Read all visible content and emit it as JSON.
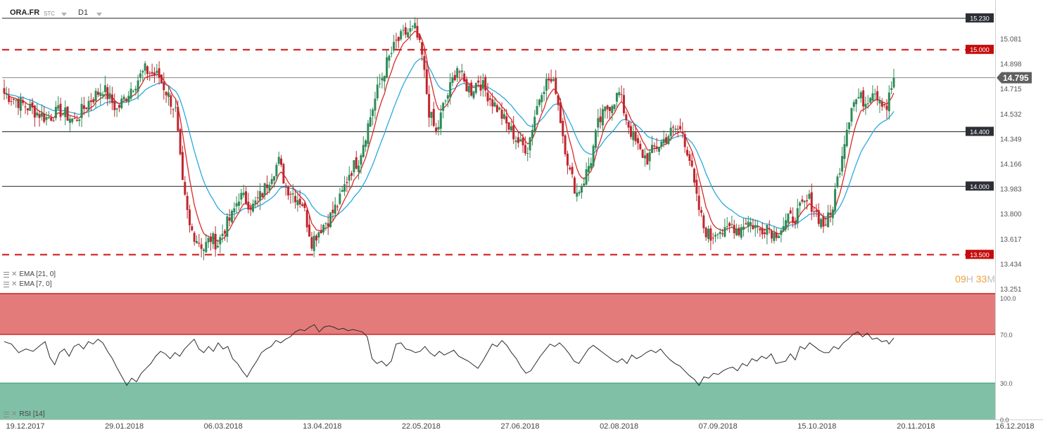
{
  "header": {
    "symbol": "ORA.FR",
    "source": "STC",
    "timeframe": "D1"
  },
  "indicators": [
    {
      "label": "EMA [21, 0]",
      "color": "#2aa9e0"
    },
    {
      "label": "EMA [7, 0]",
      "color": "#d92a2a"
    },
    {
      "label": "RSI [14]",
      "color": "#333333"
    }
  ],
  "timer": {
    "h": "09",
    "h_unit": "H",
    "m": "33",
    "m_unit": "M"
  },
  "chart_data": [
    {
      "type": "candlestick",
      "name": "price",
      "y_ticks": [
        "15.081",
        "14.898",
        "14.715",
        "14.532",
        "14.349",
        "14.166",
        "13.983",
        "13.800",
        "13.617",
        "13.434",
        "13.251"
      ],
      "ylim": [
        13.251,
        15.264
      ],
      "x_labels": [
        "19.12.2017",
        "29.01.2018",
        "06.03.2018",
        "13.04.2018",
        "22.05.2018",
        "27.06.2018",
        "02.08.2018",
        "07.09.2018",
        "15.10.2018",
        "20.11.2018",
        "16.12.2018"
      ],
      "last_price": {
        "label": "14.795",
        "value": 14.795
      },
      "levels": [
        {
          "label": "15.230",
          "value": 15.23,
          "style": "solid",
          "color": "#222222"
        },
        {
          "label": "15.000",
          "value": 15.0,
          "style": "dashed",
          "color": "#cc1111"
        },
        {
          "label": "14.400",
          "value": 14.4,
          "style": "solid",
          "color": "#222222"
        },
        {
          "label": "14.000",
          "value": 14.0,
          "style": "solid",
          "color": "#222222"
        },
        {
          "label": "13.500",
          "value": 13.5,
          "style": "dashed",
          "color": "#cc1111"
        }
      ],
      "close_path": [
        [
          0,
          14.68
        ],
        [
          6,
          14.62
        ],
        [
          12,
          14.56
        ],
        [
          18,
          14.5
        ],
        [
          24,
          14.55
        ],
        [
          30,
          14.48
        ],
        [
          36,
          14.62
        ],
        [
          42,
          14.72
        ],
        [
          48,
          14.56
        ],
        [
          54,
          14.72
        ],
        [
          60,
          14.85
        ],
        [
          66,
          14.8
        ],
        [
          70,
          14.66
        ],
        [
          73,
          14.55
        ],
        [
          76,
          14.0
        ],
        [
          79,
          13.7
        ],
        [
          82,
          13.62
        ],
        [
          85,
          13.55
        ],
        [
          88,
          13.62
        ],
        [
          91,
          13.58
        ],
        [
          94,
          13.7
        ],
        [
          97,
          13.78
        ],
        [
          100,
          13.93
        ],
        [
          103,
          13.9
        ],
        [
          106,
          13.85
        ],
        [
          110,
          13.95
        ],
        [
          114,
          14.1
        ],
        [
          117,
          14.18
        ],
        [
          120,
          14.0
        ],
        [
          123,
          13.95
        ],
        [
          127,
          13.88
        ],
        [
          131,
          13.6
        ],
        [
          135,
          13.7
        ],
        [
          139,
          13.78
        ],
        [
          143,
          13.9
        ],
        [
          147,
          14.1
        ],
        [
          151,
          14.2
        ],
        [
          155,
          14.45
        ],
        [
          159,
          14.7
        ],
        [
          163,
          14.9
        ],
        [
          167,
          15.05
        ],
        [
          171,
          15.12
        ],
        [
          175,
          15.15
        ],
        [
          178,
          14.95
        ],
        [
          181,
          14.55
        ],
        [
          184,
          14.38
        ],
        [
          187,
          14.58
        ],
        [
          190,
          14.72
        ],
        [
          193,
          14.88
        ],
        [
          196,
          14.75
        ],
        [
          199,
          14.7
        ],
        [
          202,
          14.78
        ],
        [
          205,
          14.7
        ],
        [
          208,
          14.62
        ],
        [
          211,
          14.55
        ],
        [
          214,
          14.45
        ],
        [
          217,
          14.38
        ],
        [
          220,
          14.3
        ],
        [
          223,
          14.28
        ],
        [
          226,
          14.52
        ],
        [
          229,
          14.72
        ],
        [
          232,
          14.78
        ],
        [
          235,
          14.72
        ],
        [
          238,
          14.38
        ],
        [
          241,
          14.1
        ],
        [
          244,
          13.95
        ],
        [
          247,
          14.05
        ],
        [
          250,
          14.2
        ],
        [
          253,
          14.45
        ],
        [
          256,
          14.55
        ],
        [
          259,
          14.62
        ],
        [
          262,
          14.68
        ],
        [
          265,
          14.5
        ],
        [
          268,
          14.35
        ],
        [
          271,
          14.25
        ],
        [
          274,
          14.2
        ],
        [
          277,
          14.28
        ],
        [
          280,
          14.32
        ],
        [
          283,
          14.38
        ],
        [
          286,
          14.42
        ],
        [
          289,
          14.4
        ],
        [
          292,
          14.2
        ],
        [
          295,
          13.9
        ],
        [
          298,
          13.7
        ],
        [
          301,
          13.62
        ],
        [
          304,
          13.7
        ],
        [
          307,
          13.65
        ],
        [
          310,
          13.72
        ],
        [
          313,
          13.68
        ],
        [
          316,
          13.75
        ],
        [
          319,
          13.72
        ],
        [
          322,
          13.68
        ],
        [
          325,
          13.72
        ],
        [
          328,
          13.65
        ],
        [
          331,
          13.7
        ],
        [
          334,
          13.75
        ],
        [
          337,
          13.78
        ],
        [
          340,
          13.85
        ],
        [
          343,
          13.9
        ],
        [
          346,
          13.8
        ],
        [
          349,
          13.72
        ],
        [
          352,
          13.78
        ],
        [
          355,
          14.05
        ],
        [
          358,
          14.35
        ],
        [
          361,
          14.6
        ],
        [
          364,
          14.65
        ],
        [
          367,
          14.62
        ],
        [
          370,
          14.72
        ],
        [
          373,
          14.65
        ],
        [
          376,
          14.58
        ],
        [
          379,
          14.795
        ]
      ]
    },
    {
      "type": "line",
      "name": "RSI [14]",
      "y_ticks": [
        "100.0",
        "70.0",
        "30.0",
        "0.0"
      ],
      "ylim": [
        0,
        100
      ],
      "overbought": 70,
      "oversold": 30,
      "series_path": [
        [
          0,
          64
        ],
        [
          3,
          62
        ],
        [
          6,
          55
        ],
        [
          9,
          58
        ],
        [
          12,
          56
        ],
        [
          15,
          61
        ],
        [
          17,
          64
        ],
        [
          19,
          51
        ],
        [
          21,
          45
        ],
        [
          23,
          55
        ],
        [
          25,
          58
        ],
        [
          27,
          52
        ],
        [
          29,
          60
        ],
        [
          31,
          62
        ],
        [
          33,
          58
        ],
        [
          35,
          64
        ],
        [
          37,
          62
        ],
        [
          39,
          66
        ],
        [
          41,
          63
        ],
        [
          43,
          56
        ],
        [
          45,
          50
        ],
        [
          47,
          42
        ],
        [
          49,
          35
        ],
        [
          51,
          28
        ],
        [
          53,
          34
        ],
        [
          55,
          31
        ],
        [
          57,
          38
        ],
        [
          59,
          42
        ],
        [
          61,
          46
        ],
        [
          63,
          52
        ],
        [
          65,
          56
        ],
        [
          67,
          54
        ],
        [
          69,
          50
        ],
        [
          71,
          55
        ],
        [
          73,
          52
        ],
        [
          75,
          58
        ],
        [
          77,
          62
        ],
        [
          79,
          66
        ],
        [
          81,
          58
        ],
        [
          83,
          55
        ],
        [
          85,
          60
        ],
        [
          87,
          56
        ],
        [
          89,
          63
        ],
        [
          91,
          58
        ],
        [
          93,
          60
        ],
        [
          95,
          50
        ],
        [
          97,
          46
        ],
        [
          99,
          40
        ],
        [
          101,
          35
        ],
        [
          103,
          42
        ],
        [
          105,
          48
        ],
        [
          107,
          55
        ],
        [
          109,
          58
        ],
        [
          111,
          60
        ],
        [
          113,
          65
        ],
        [
          115,
          63
        ],
        [
          117,
          66
        ],
        [
          119,
          68
        ],
        [
          121,
          72
        ],
        [
          123,
          74
        ],
        [
          125,
          73
        ],
        [
          127,
          76
        ],
        [
          129,
          78
        ],
        [
          131,
          72
        ],
        [
          133,
          76
        ],
        [
          135,
          77
        ],
        [
          137,
          76
        ],
        [
          139,
          74
        ],
        [
          141,
          75
        ],
        [
          143,
          73
        ],
        [
          145,
          74
        ],
        [
          147,
          73
        ],
        [
          149,
          72
        ],
        [
          151,
          68
        ],
        [
          153,
          50
        ],
        [
          155,
          46
        ],
        [
          157,
          48
        ],
        [
          159,
          44
        ],
        [
          161,
          48
        ],
        [
          163,
          62
        ],
        [
          165,
          63
        ],
        [
          167,
          58
        ],
        [
          169,
          57
        ],
        [
          171,
          55
        ],
        [
          173,
          56
        ],
        [
          175,
          60
        ],
        [
          177,
          55
        ],
        [
          179,
          52
        ],
        [
          181,
          56
        ],
        [
          183,
          53
        ],
        [
          185,
          55
        ],
        [
          187,
          57
        ],
        [
          189,
          52
        ],
        [
          191,
          50
        ],
        [
          193,
          48
        ],
        [
          195,
          45
        ],
        [
          197,
          42
        ],
        [
          199,
          48
        ],
        [
          201,
          55
        ],
        [
          203,
          62
        ],
        [
          205,
          60
        ],
        [
          207,
          65
        ],
        [
          209,
          61
        ],
        [
          211,
          55
        ],
        [
          213,
          50
        ],
        [
          215,
          43
        ],
        [
          217,
          38
        ],
        [
          219,
          40
        ],
        [
          221,
          46
        ],
        [
          223,
          52
        ],
        [
          225,
          57
        ],
        [
          227,
          62
        ],
        [
          229,
          60
        ],
        [
          231,
          63
        ],
        [
          233,
          59
        ],
        [
          235,
          54
        ],
        [
          237,
          48
        ],
        [
          239,
          46
        ],
        [
          241,
          52
        ],
        [
          243,
          58
        ],
        [
          245,
          61
        ],
        [
          247,
          58
        ],
        [
          249,
          55
        ],
        [
          251,
          52
        ],
        [
          253,
          49
        ],
        [
          255,
          47
        ],
        [
          257,
          50
        ],
        [
          259,
          46
        ],
        [
          261,
          53
        ],
        [
          263,
          50
        ],
        [
          265,
          52
        ],
        [
          267,
          55
        ],
        [
          269,
          57
        ],
        [
          271,
          55
        ],
        [
          273,
          58
        ],
        [
          275,
          53
        ],
        [
          277,
          49
        ],
        [
          279,
          46
        ],
        [
          281,
          44
        ],
        [
          283,
          40
        ],
        [
          285,
          36
        ],
        [
          287,
          33
        ],
        [
          289,
          28
        ],
        [
          291,
          35
        ],
        [
          293,
          34
        ],
        [
          295,
          38
        ],
        [
          297,
          37
        ],
        [
          299,
          40
        ],
        [
          301,
          42
        ],
        [
          303,
          43
        ],
        [
          305,
          40
        ],
        [
          307,
          46
        ],
        [
          309,
          44
        ],
        [
          311,
          50
        ],
        [
          313,
          48
        ],
        [
          315,
          52
        ],
        [
          317,
          50
        ],
        [
          319,
          54
        ],
        [
          321,
          46
        ],
        [
          323,
          47
        ],
        [
          325,
          48
        ],
        [
          327,
          54
        ],
        [
          329,
          49
        ],
        [
          331,
          60
        ],
        [
          333,
          58
        ],
        [
          335,
          63
        ],
        [
          337,
          60
        ],
        [
          339,
          57
        ],
        [
          341,
          55
        ],
        [
          343,
          55
        ],
        [
          345,
          60
        ],
        [
          347,
          58
        ],
        [
          349,
          63
        ],
        [
          351,
          66
        ],
        [
          353,
          70
        ],
        [
          355,
          72
        ],
        [
          357,
          68
        ],
        [
          359,
          71
        ],
        [
          361,
          66
        ],
        [
          363,
          67
        ],
        [
          365,
          64
        ],
        [
          367,
          65
        ],
        [
          368,
          62
        ],
        [
          370,
          67
        ]
      ]
    }
  ]
}
